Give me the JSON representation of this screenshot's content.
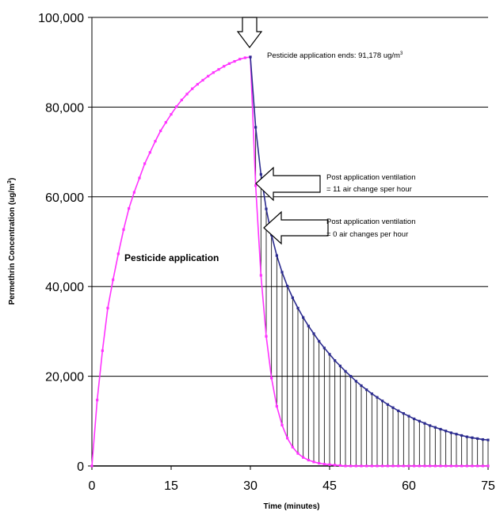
{
  "chart_data": {
    "type": "line",
    "title": "",
    "xlabel": "Time (minutes)",
    "ylabel": "Permethrin Concentration (ug/m3)",
    "xlim": [
      0,
      75
    ],
    "ylim": [
      0,
      100000
    ],
    "x_ticks": [
      "0",
      "15",
      "30",
      "45",
      "60",
      "75"
    ],
    "y_ticks": [
      "0",
      "20,000",
      "40,000",
      "60,000",
      "80,000",
      "100,000"
    ],
    "grid": "horizontal",
    "legend": "none",
    "series": [
      {
        "color": "#ff33ff",
        "x": [
          0,
          1,
          2,
          3,
          4,
          5,
          6,
          7,
          8,
          9,
          10,
          11,
          12,
          13,
          14,
          15,
          16,
          17,
          18,
          19,
          20,
          21,
          22,
          23,
          24,
          25,
          26,
          27,
          28,
          29,
          30,
          31,
          32,
          33,
          34,
          35,
          36,
          37,
          38,
          39,
          40,
          41,
          42,
          43,
          44,
          45,
          46,
          47,
          48,
          49,
          50,
          51,
          52,
          53,
          54,
          55,
          56,
          57,
          58,
          59,
          60,
          61,
          62,
          63,
          64,
          65,
          66,
          67,
          68,
          69,
          70,
          71,
          72,
          73,
          74,
          75
        ],
        "y": [
          0,
          14700,
          25700,
          35200,
          41500,
          47300,
          52700,
          57400,
          61000,
          64200,
          67400,
          69900,
          72400,
          74700,
          76600,
          78400,
          80100,
          81600,
          82900,
          84100,
          85100,
          86000,
          86900,
          87700,
          88400,
          89100,
          89700,
          90200,
          90700,
          91000,
          91178,
          62500,
          42500,
          28900,
          19600,
          13300,
          9100,
          6200,
          4200,
          2800,
          1900,
          1300,
          900,
          600,
          400,
          300,
          200,
          100,
          0,
          0,
          0,
          0,
          0,
          0,
          0,
          0,
          0,
          0,
          0,
          0,
          0,
          0,
          0,
          0,
          0,
          0,
          0,
          0,
          0,
          0,
          0,
          0,
          0,
          0,
          0,
          0
        ]
      },
      {
        "color": "#2b2b8f",
        "x": [
          30,
          31,
          32,
          33,
          34,
          35,
          36,
          37,
          38,
          39,
          40,
          41,
          42,
          43,
          44,
          45,
          46,
          47,
          48,
          49,
          50,
          51,
          52,
          53,
          54,
          55,
          56,
          57,
          58,
          59,
          60,
          61,
          62,
          63,
          64,
          65,
          66,
          67,
          68,
          69,
          70,
          71,
          72,
          73,
          74,
          75
        ],
        "y": [
          91178,
          75500,
          65000,
          57300,
          51500,
          46900,
          43200,
          40100,
          37500,
          35200,
          33100,
          31200,
          29500,
          27800,
          26300,
          24900,
          23500,
          22300,
          21100,
          20000,
          18900,
          17900,
          17000,
          16100,
          15300,
          14500,
          13700,
          13000,
          12300,
          11700,
          11100,
          10500,
          10000,
          9500,
          9000,
          8600,
          8200,
          7800,
          7400,
          7100,
          6800,
          6500,
          6300,
          6100,
          5900,
          5800
        ]
      }
    ],
    "annotations": [
      {
        "text": "Pesticide application ends: 91,178 ug/m3"
      },
      {
        "text": "Post application ventilation"
      },
      {
        "text": "= 11 air change sper hour"
      },
      {
        "text": "Post application ventilation"
      },
      {
        "text": "= 0 air changes per hour"
      },
      {
        "text": "Pesticide application"
      }
    ]
  }
}
